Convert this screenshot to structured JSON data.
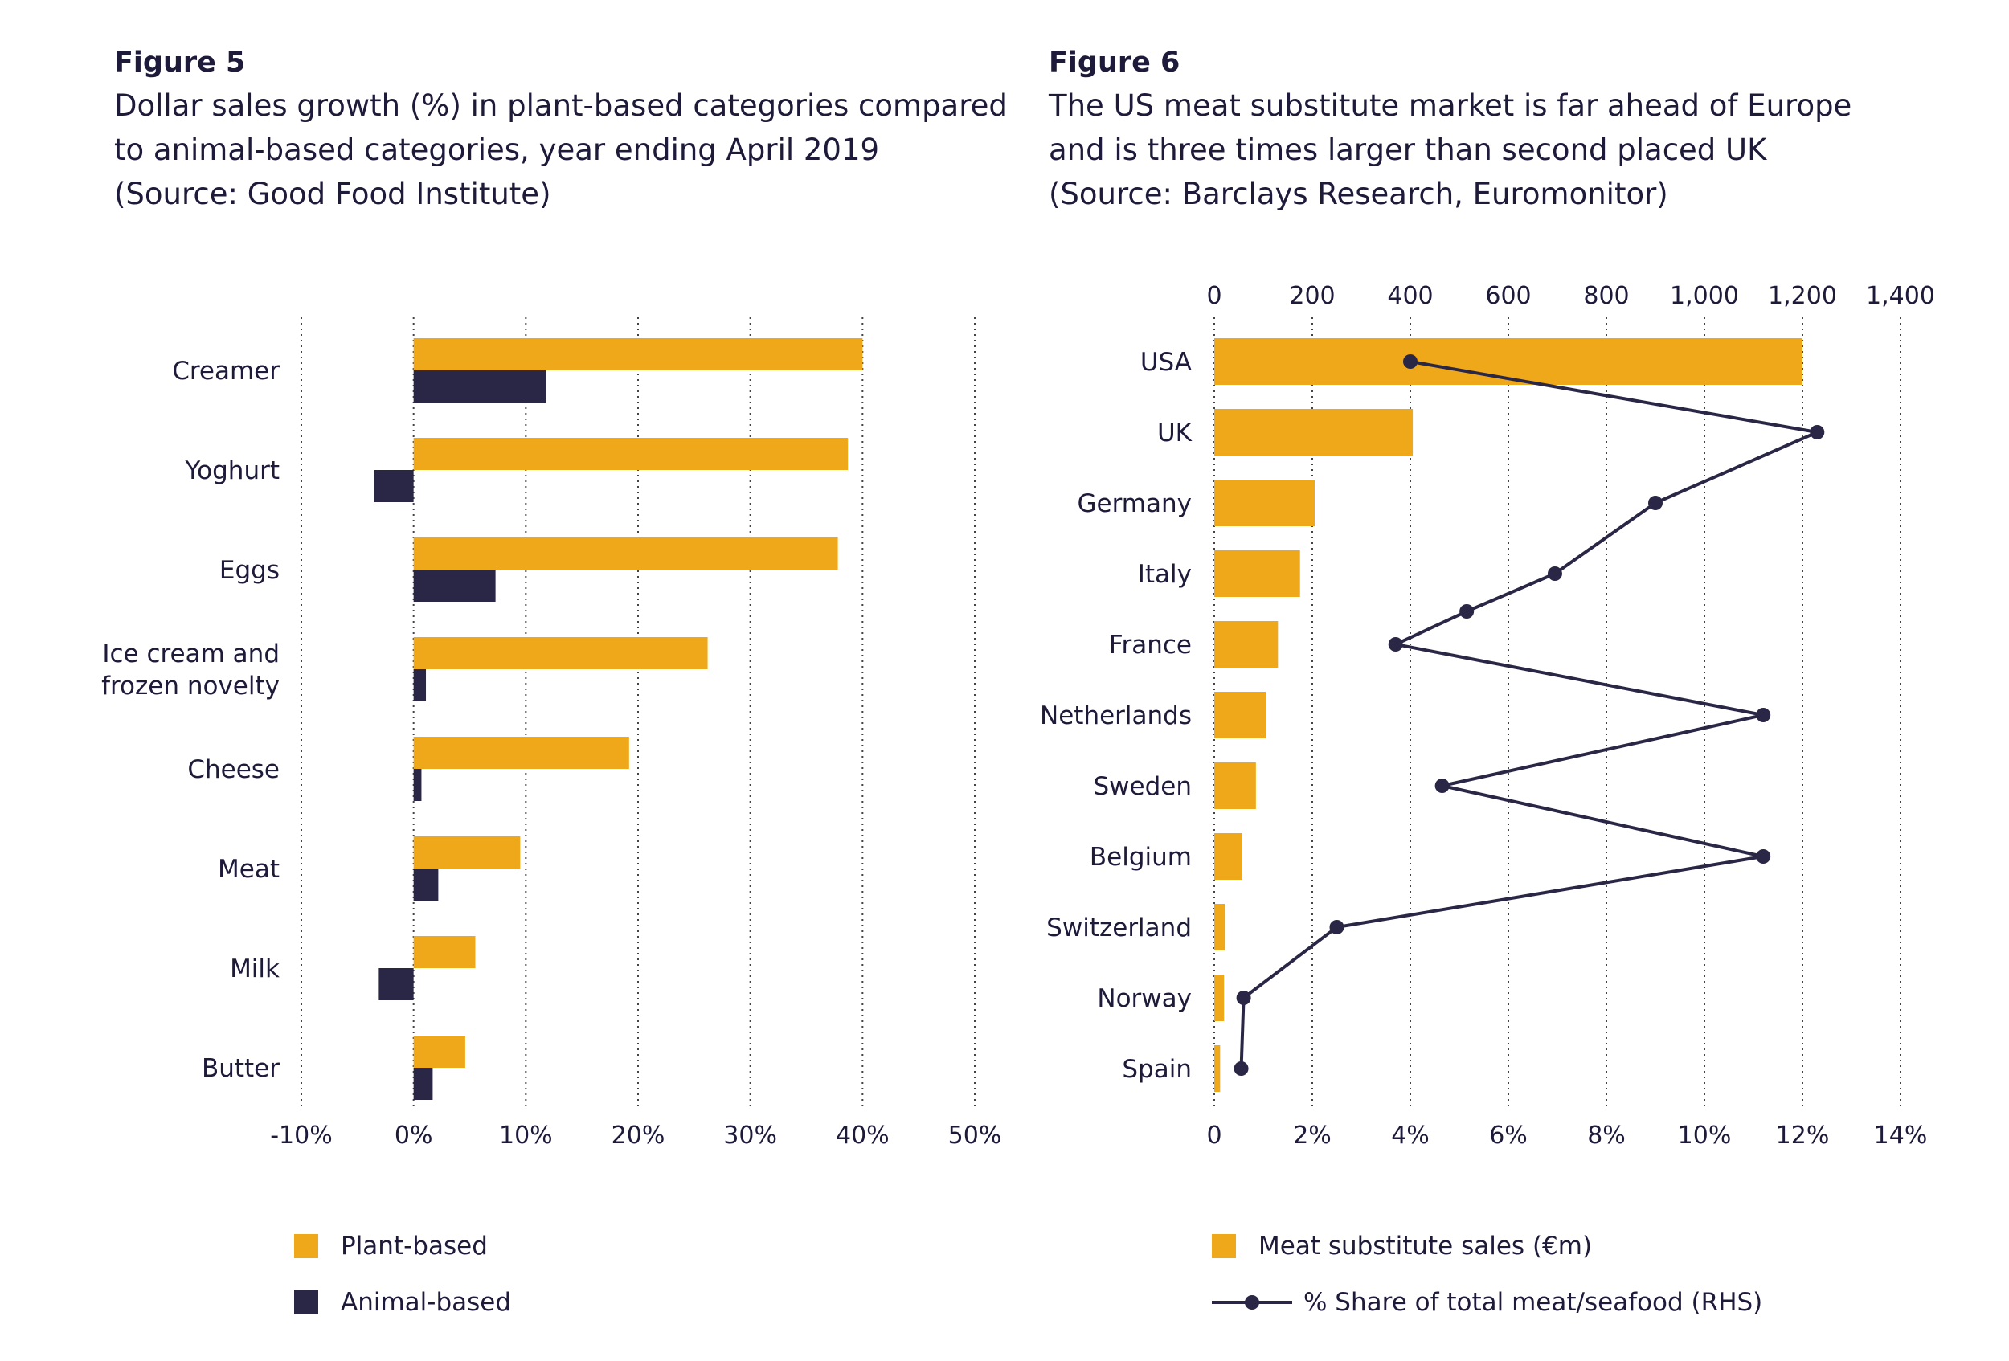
{
  "figure5": {
    "label": "Figure 5",
    "subtitle_lines": [
      "Dollar sales growth (%) in plant-based categories compared",
      "to animal-based categories, year ending April 2019",
      "(Source: Good Food Institute)"
    ]
  },
  "figure6": {
    "label": "Figure 6",
    "subtitle_lines": [
      "The US meat substitute market is far ahead of Europe",
      "and is three times larger than second placed UK",
      "(Source: Barclays Research, Euromonitor)"
    ]
  },
  "colors": {
    "plant": "#f0a81b",
    "animal": "#2a2746",
    "text": "#1e1b3a",
    "grid": "#444444"
  },
  "chart_data": [
    {
      "type": "bar",
      "orientation": "horizontal",
      "categories": [
        "Creamer",
        "Yoghurt",
        "Eggs",
        "Ice cream and frozen novelty",
        "Cheese",
        "Meat",
        "Milk",
        "Butter"
      ],
      "category_lines": [
        [
          "Creamer"
        ],
        [
          "Yoghurt"
        ],
        [
          "Eggs"
        ],
        [
          "Ice cream and",
          "frozen novelty"
        ],
        [
          "Cheese"
        ],
        [
          "Meat"
        ],
        [
          "Milk"
        ],
        [
          "Butter"
        ]
      ],
      "series": [
        {
          "name": "Plant-based",
          "values": [
            40,
            38.7,
            37.8,
            26.2,
            19.2,
            9.5,
            5.5,
            4.6
          ]
        },
        {
          "name": "Animal-based",
          "values": [
            11.8,
            -3.5,
            7.3,
            1.1,
            0.7,
            2.2,
            -3.1,
            1.7
          ]
        }
      ],
      "xlim": [
        -10,
        50
      ],
      "xticks": [
        -10,
        0,
        10,
        20,
        30,
        40,
        50
      ],
      "xtick_labels": [
        "-10%",
        "0%",
        "10%",
        "20%",
        "30%",
        "40%",
        "50%"
      ],
      "grid": "vertical dotted",
      "legend": [
        "Plant-based",
        "Animal-based"
      ]
    },
    {
      "type": "bar+line",
      "orientation": "horizontal",
      "categories": [
        "USA",
        "UK",
        "Germany",
        "Italy",
        "France",
        "Netherlands",
        "Sweden",
        "Belgium",
        "Switzerland",
        "Norway",
        "Spain"
      ],
      "bar_series": {
        "name": "Meat substitute sales (€m)",
        "values": [
          1200,
          405,
          205,
          175,
          130,
          105,
          85,
          57,
          22,
          20,
          12
        ]
      },
      "line_series": {
        "name": "% Share of total meat/seafood (RHS)",
        "values": [
          4.0,
          12.3,
          9.0,
          6.95,
          5.15,
          3.7,
          11.2,
          4.65,
          11.2,
          2.5,
          0.6,
          0.55
        ]
      },
      "line_values_by_category": [
        4.0,
        12.3,
        9.0,
        6.95,
        3.7,
        11.2,
        4.65,
        11.2,
        2.5,
        0.6,
        0.55
      ],
      "line_extra_point": {
        "between": [
          "Italy",
          "France"
        ],
        "value": 5.15
      },
      "top_axis": {
        "range": [
          0,
          1400
        ],
        "ticks": [
          0,
          200,
          400,
          600,
          800,
          1000,
          1200,
          1400
        ],
        "tick_labels": [
          "0",
          "200",
          "400",
          "600",
          "800",
          "1,000",
          "1,200",
          "1,400"
        ]
      },
      "bottom_axis": {
        "range": [
          0,
          14
        ],
        "ticks": [
          0,
          2,
          4,
          6,
          8,
          10,
          12,
          14
        ],
        "tick_labels": [
          "0",
          "2%",
          "4%",
          "6%",
          "8%",
          "10%",
          "12%",
          "14%"
        ]
      },
      "grid": "vertical dotted",
      "legend": [
        "Meat substitute sales (€m)",
        "% Share of total meat/seafood (RHS)"
      ]
    }
  ]
}
